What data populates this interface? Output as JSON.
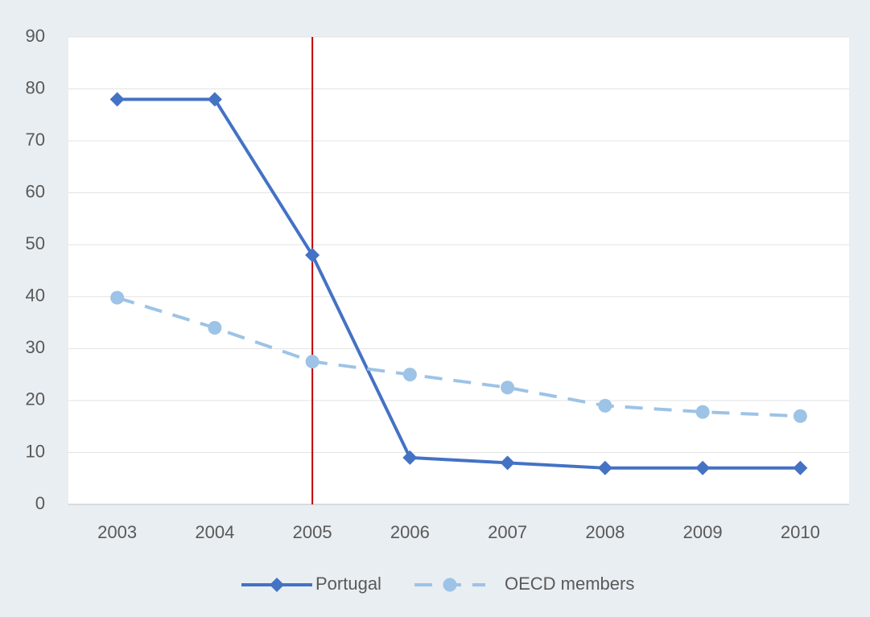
{
  "chart_data": {
    "type": "line",
    "categories": [
      "2003",
      "2004",
      "2005",
      "2006",
      "2007",
      "2008",
      "2009",
      "2010"
    ],
    "series": [
      {
        "name": "Portugal",
        "color": "#4472c4",
        "dash": false,
        "marker": "diamond",
        "values": [
          78,
          78,
          48,
          9,
          8,
          7,
          7,
          7
        ]
      },
      {
        "name": "OECD members",
        "color": "#9dc3e6",
        "dash": true,
        "marker": "circle",
        "values": [
          39.8,
          34,
          27.5,
          25,
          22.5,
          19,
          17.8,
          17
        ]
      }
    ],
    "ylim": [
      0,
      90
    ],
    "yticks": [
      0,
      10,
      20,
      30,
      40,
      50,
      60,
      70,
      80,
      90
    ],
    "grid": true,
    "vline": {
      "x": "2005",
      "color": "#c00000"
    },
    "legend": "bottom"
  }
}
